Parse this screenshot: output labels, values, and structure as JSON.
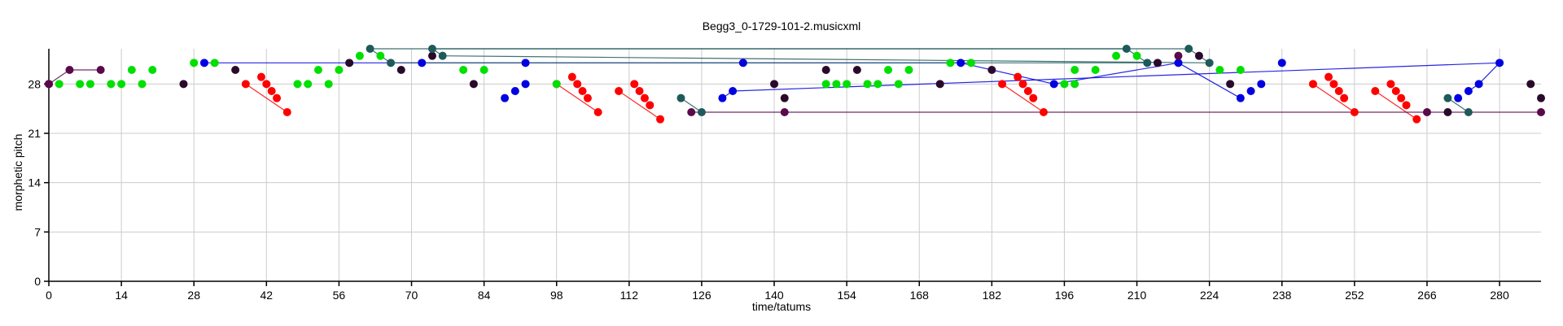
{
  "chart_data": {
    "type": "scatter",
    "title": "Begg3_0-1729-101-2.musicxml",
    "xlabel": "time/tatums",
    "ylabel": "morphetic pitch",
    "xlim": [
      0,
      288
    ],
    "ylim": [
      0,
      33
    ],
    "xticks": [
      0,
      14,
      28,
      42,
      56,
      70,
      84,
      98,
      112,
      126,
      140,
      154,
      168,
      182,
      196,
      210,
      224,
      238,
      252,
      266,
      280
    ],
    "yticks": [
      0,
      7,
      14,
      21,
      28
    ],
    "grid": true,
    "colors": {
      "red": "#ff0000",
      "green": "#00e000",
      "blue": "#0000e0",
      "dark": "#2a0a2a",
      "teal": "#1e5a5a",
      "purple": "#5a0a4a"
    },
    "series": [
      {
        "color": "#ff0000",
        "points": [
          [
            38,
            28
          ],
          [
            41,
            29
          ],
          [
            42,
            28
          ],
          [
            43,
            27
          ],
          [
            44,
            26
          ],
          [
            46,
            24
          ],
          [
            98,
            28
          ],
          [
            101,
            29
          ],
          [
            102,
            28
          ],
          [
            103,
            27
          ],
          [
            104,
            26
          ],
          [
            106,
            24
          ],
          [
            110,
            27
          ],
          [
            113,
            28
          ],
          [
            114,
            27
          ],
          [
            115,
            26
          ],
          [
            116,
            25
          ],
          [
            118,
            23
          ],
          [
            184,
            28
          ],
          [
            187,
            29
          ],
          [
            188,
            28
          ],
          [
            189,
            27
          ],
          [
            190,
            26
          ],
          [
            192,
            24
          ],
          [
            244,
            28
          ],
          [
            247,
            29
          ],
          [
            248,
            28
          ],
          [
            249,
            27
          ],
          [
            250,
            26
          ],
          [
            252,
            24
          ],
          [
            256,
            27
          ],
          [
            259,
            28
          ],
          [
            260,
            27
          ],
          [
            261,
            26
          ],
          [
            262,
            25
          ],
          [
            264,
            23
          ]
        ],
        "lines": [
          [
            0,
            5
          ],
          [
            6,
            11
          ],
          [
            12,
            17
          ],
          [
            18,
            23
          ],
          [
            24,
            29
          ],
          [
            30,
            35
          ]
        ]
      },
      {
        "color": "#00e000",
        "points": [
          [
            2,
            28
          ],
          [
            6,
            28
          ],
          [
            8,
            28
          ],
          [
            12,
            28
          ],
          [
            14,
            28
          ],
          [
            18,
            28
          ],
          [
            28,
            31
          ],
          [
            32,
            31
          ],
          [
            48,
            28
          ],
          [
            50,
            28
          ],
          [
            52,
            30
          ],
          [
            54,
            28
          ],
          [
            56,
            30
          ],
          [
            60,
            32
          ],
          [
            64,
            32
          ],
          [
            80,
            30
          ],
          [
            84,
            30
          ],
          [
            98,
            28
          ],
          [
            150,
            28
          ],
          [
            152,
            28
          ],
          [
            154,
            28
          ],
          [
            158,
            28
          ],
          [
            160,
            28
          ],
          [
            162,
            30
          ],
          [
            164,
            28
          ],
          [
            166,
            30
          ],
          [
            174,
            31
          ],
          [
            178,
            31
          ],
          [
            196,
            28
          ],
          [
            198,
            28
          ],
          [
            198,
            30
          ],
          [
            202,
            30
          ],
          [
            206,
            32
          ],
          [
            210,
            32
          ],
          [
            226,
            30
          ],
          [
            230,
            30
          ],
          [
            16,
            30
          ],
          [
            20,
            30
          ]
        ],
        "lines": []
      },
      {
        "color": "#0000e0",
        "points": [
          [
            30,
            31
          ],
          [
            72,
            31
          ],
          [
            88,
            26
          ],
          [
            90,
            27
          ],
          [
            92,
            28
          ],
          [
            92,
            31
          ],
          [
            134,
            31
          ],
          [
            176,
            31
          ],
          [
            194,
            28
          ],
          [
            218,
            31
          ],
          [
            230,
            26
          ],
          [
            232,
            27
          ],
          [
            234,
            28
          ],
          [
            238,
            31
          ],
          [
            272,
            26
          ],
          [
            274,
            27
          ],
          [
            276,
            28
          ],
          [
            280,
            31
          ],
          [
            132,
            27
          ],
          [
            130,
            26
          ]
        ],
        "lines": [
          [
            0,
            1
          ],
          [
            1,
            6
          ],
          [
            6,
            7
          ],
          [
            7,
            8
          ],
          [
            8,
            9
          ],
          [
            9,
            10
          ],
          [
            15,
            16
          ],
          [
            16,
            17
          ],
          [
            17,
            18
          ],
          [
            18,
            19
          ]
        ]
      },
      {
        "color": "#2a0a2a",
        "points": [
          [
            0,
            28
          ],
          [
            26,
            28
          ],
          [
            36,
            30
          ],
          [
            58,
            31
          ],
          [
            68,
            30
          ],
          [
            74,
            32
          ],
          [
            82,
            28
          ],
          [
            140,
            28
          ],
          [
            142,
            26
          ],
          [
            150,
            30
          ],
          [
            156,
            30
          ],
          [
            172,
            28
          ],
          [
            182,
            30
          ],
          [
            214,
            31
          ],
          [
            222,
            32
          ],
          [
            228,
            28
          ],
          [
            270,
            24
          ],
          [
            286,
            28
          ],
          [
            288,
            26
          ]
        ],
        "lines": []
      },
      {
        "color": "#1e5a5a",
        "points": [
          [
            62,
            33
          ],
          [
            66,
            31
          ],
          [
            74,
            33
          ],
          [
            76,
            32
          ],
          [
            122,
            26
          ],
          [
            126,
            24
          ],
          [
            208,
            33
          ],
          [
            212,
            31
          ],
          [
            220,
            33
          ],
          [
            224,
            31
          ],
          [
            270,
            26
          ],
          [
            274,
            24
          ]
        ],
        "lines": [
          [
            0,
            1
          ],
          [
            2,
            3
          ],
          [
            4,
            5
          ],
          [
            6,
            7
          ],
          [
            8,
            9
          ],
          [
            10,
            11
          ],
          [
            0,
            6
          ],
          [
            1,
            7
          ],
          [
            2,
            8
          ],
          [
            3,
            9
          ]
        ]
      },
      {
        "color": "#5a0a4a",
        "points": [
          [
            0,
            28
          ],
          [
            4,
            30
          ],
          [
            10,
            30
          ],
          [
            124,
            24
          ],
          [
            142,
            24
          ],
          [
            266,
            24
          ],
          [
            288,
            24
          ],
          [
            218,
            32
          ]
        ],
        "lines": [
          [
            0,
            1
          ],
          [
            1,
            2
          ],
          [
            3,
            4
          ],
          [
            4,
            5
          ],
          [
            5,
            6
          ]
        ]
      }
    ]
  }
}
